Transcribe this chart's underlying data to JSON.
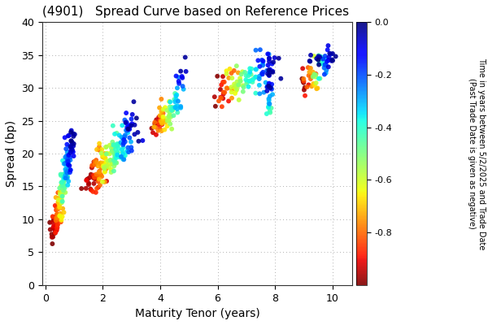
{
  "title": "(4901)   Spread Curve based on Reference Prices",
  "xlabel": "Maturity Tenor (years)",
  "ylabel": "Spread (bp)",
  "colorbar_label_line1": "Time in years between 5/2/2025 and Trade Date",
  "colorbar_label_line2": "(Past Trade Date is given as negative)",
  "xlim": [
    -0.1,
    10.7
  ],
  "ylim": [
    0,
    40
  ],
  "xticks": [
    0,
    2,
    4,
    6,
    8,
    10
  ],
  "yticks": [
    0,
    5,
    10,
    15,
    20,
    25,
    30,
    35,
    40
  ],
  "cmap": "jet_r",
  "clim": [
    -1.0,
    0.0
  ],
  "cticks": [
    0.0,
    -0.2,
    -0.4,
    -0.6,
    -0.8
  ],
  "background_color": "#ffffff",
  "grid_color": "#b0b0b0",
  "marker_size": 18,
  "marker_alpha": 0.9
}
